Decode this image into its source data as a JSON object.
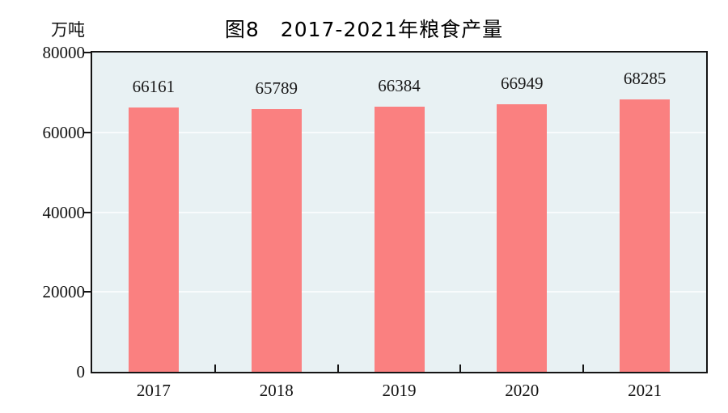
{
  "chart_data": {
    "type": "bar",
    "title": "图8　2017-2021年粮食产量",
    "unit_label": "万吨",
    "categories": [
      "2017",
      "2018",
      "2019",
      "2020",
      "2021"
    ],
    "values": [
      66161,
      65789,
      66384,
      66949,
      68285
    ],
    "value_labels": [
      "66161",
      "65789",
      "66384",
      "66949",
      "68285"
    ],
    "xlabel": "",
    "ylabel": "万吨",
    "ylim": [
      0,
      80000
    ],
    "y_ticks": [
      0,
      20000,
      40000,
      60000,
      80000
    ],
    "y_tick_labels": [
      "0",
      "20000",
      "40000",
      "60000",
      "80000"
    ],
    "gridline_values": [
      20000,
      40000,
      60000
    ],
    "grid": true,
    "legend_position": "none",
    "colors": {
      "bar": "#FA8080",
      "plot_background": "#E8F1F3",
      "gridline": "#F8FBFC",
      "axis": "#141414",
      "text": "#111111"
    }
  }
}
